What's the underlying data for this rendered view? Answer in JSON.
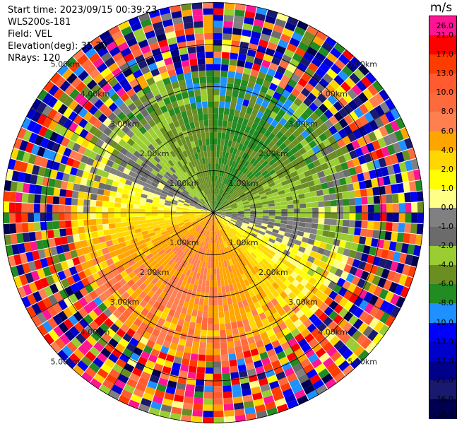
{
  "header": {
    "start_time": "Start time: 2023/09/15 00:39:23",
    "instrument": "WLS200s-181",
    "field": "Field: VEL",
    "elevation": "Elevation(deg): 35.30",
    "nrays": "NRays: 120"
  },
  "colorbar": {
    "unit": "m/s",
    "levels": [
      "26.0",
      "21.0",
      "17.0",
      "13.0",
      "10.0",
      "8.0",
      "6.0",
      "4.0",
      "2.0",
      "1.0",
      "0.0",
      "-1.0",
      "-2.0",
      "-4.0",
      "-6.0",
      "-8.0",
      "-10.0",
      "-13.0",
      "-17.0",
      "-21.0",
      "-26.0",
      "-30.0"
    ],
    "colors": [
      "#ff1493",
      "#ff0000",
      "#ff3c00",
      "#ff5a30",
      "#ff6a3c",
      "#ff7f50",
      "#ffa500",
      "#ffd700",
      "#ffff00",
      "#ffff88",
      "#808080",
      "#6b6b6b",
      "#9acd32",
      "#6b8e23",
      "#228b22",
      "#1e90ff",
      "#0000ff",
      "#0000cd",
      "#00008b",
      "#191970",
      "#000050"
    ]
  },
  "chart_data": {
    "type": "ppi",
    "field": "VEL",
    "units": "m/s",
    "nrays": 120,
    "elevation_deg": 35.3,
    "range_rings_km": [
      1.0,
      2.0,
      3.0,
      4.0,
      5.0
    ],
    "ring_labels": [
      "1.00km",
      "2.00km",
      "3.00km",
      "4.00km",
      "5.00km"
    ],
    "vmin": -30.0,
    "vmax": 26.0,
    "pattern": "receding (positive) flow to the south/southeast, approaching (negative) to the north/northwest, noisy speckle beyond ~3 km"
  }
}
